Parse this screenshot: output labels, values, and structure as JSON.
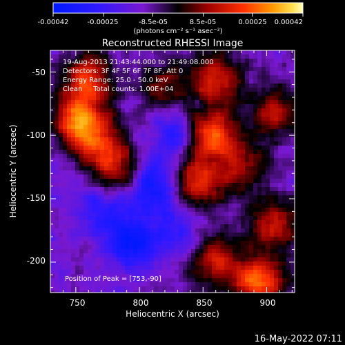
{
  "colorbar": {
    "ticks": [
      "-0.00042",
      "-0.00025",
      "-8.5e-05",
      "8.5e-05",
      "0.00025",
      "0.00042"
    ],
    "units_label": "(photons cm⁻² s⁻¹ asec⁻²)"
  },
  "info": {
    "line1": "19-Aug-2013 21:43:44.000 to 21:49:08.000",
    "line2": "Detectors: 3F 4F 5F 6F 7F 8F, Att 0",
    "line3": "Energy Range: 25.0 - 50.0 keV",
    "line4": "Clean     Total counts: 1.00E+04",
    "peak": "Position of Peak = [753,-90]"
  },
  "timestamp": "16-May-2022 07:11",
  "chart_data": {
    "type": "heatmap",
    "title": "Reconstructed RHESSI Image",
    "xlabel": "Heliocentric X (arcsec)",
    "ylabel": "Heliocentric Y (arcsec)",
    "xlim": [
      730,
      922
    ],
    "ylim": [
      -224,
      -33
    ],
    "x_ticks": [
      750,
      800,
      850,
      900
    ],
    "y_ticks": [
      -50,
      -100,
      -150,
      -200
    ],
    "colorbar_range": [
      -0.00042,
      0.00042
    ],
    "colorbar_ticks": [
      -0.00042,
      -0.00025,
      -8.5e-05,
      8.5e-05,
      0.00025,
      0.00042
    ],
    "peak_position": [
      753,
      -90
    ],
    "hot_regions": [
      {
        "x": 753,
        "y": -88,
        "value": 0.00042
      },
      {
        "x": 760,
        "y": -55,
        "value": 0.0003
      },
      {
        "x": 855,
        "y": -100,
        "value": 0.0004
      },
      {
        "x": 860,
        "y": -55,
        "value": 0.0003
      },
      {
        "x": 905,
        "y": -82,
        "value": 0.00025
      },
      {
        "x": 845,
        "y": -138,
        "value": 0.0003
      },
      {
        "x": 785,
        "y": -130,
        "value": 0.00022
      },
      {
        "x": 820,
        "y": -62,
        "value": 0.00018
      },
      {
        "x": 860,
        "y": -200,
        "value": 0.00028
      },
      {
        "x": 895,
        "y": -215,
        "value": 0.00038
      },
      {
        "x": 905,
        "y": -170,
        "value": 0.00025
      },
      {
        "x": 880,
        "y": -125,
        "value": 0.00022
      },
      {
        "x": 770,
        "y": -110,
        "value": 0.00026
      }
    ],
    "cold_regions": [
      {
        "x": 810,
        "y": -140,
        "value": -0.0003
      },
      {
        "x": 795,
        "y": -185,
        "value": -0.00028
      },
      {
        "x": 830,
        "y": -100,
        "value": -0.0002
      },
      {
        "x": 770,
        "y": -160,
        "value": -0.00018
      },
      {
        "x": 830,
        "y": -175,
        "value": -0.00015
      }
    ]
  }
}
